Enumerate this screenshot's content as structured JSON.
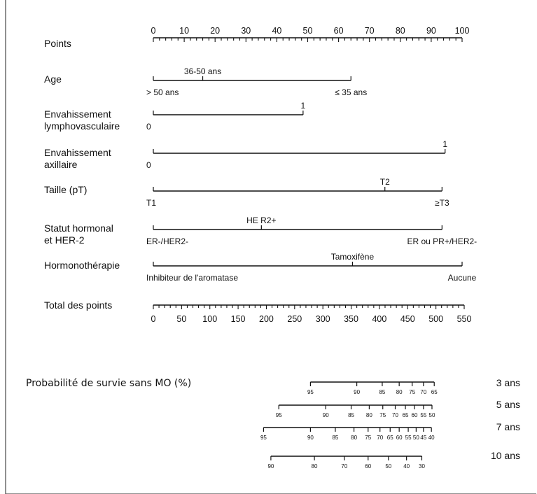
{
  "chart_data": {
    "type": "nomogram",
    "rows": [
      {
        "label_lines": [
          "Points"
        ],
        "scale": {
          "min": 0,
          "max": 100,
          "major_step": 10,
          "minor_step": 2
        },
        "tick_labels": [
          "0",
          "10",
          "20",
          "30",
          "40",
          "50",
          "60",
          "70",
          "80",
          "90",
          "100"
        ]
      },
      {
        "label_lines": [
          "Age"
        ],
        "levels": [
          {
            "text": "> 50 ans",
            "points": 0,
            "position": "below"
          },
          {
            "text": "36-50 ans",
            "points": 16,
            "position": "above"
          },
          {
            "text": "≤ 35 ans",
            "points": 64,
            "position": "below"
          }
        ]
      },
      {
        "label_lines": [
          "Envahissement",
          "lymphovasculaire"
        ],
        "levels": [
          {
            "text": "0",
            "points": 0,
            "position": "below"
          },
          {
            "text": "1",
            "points": 48.5,
            "position": "above"
          }
        ]
      },
      {
        "label_lines": [
          "Envahissement",
          "axillaire"
        ],
        "levels": [
          {
            "text": "0",
            "points": 0,
            "position": "below"
          },
          {
            "text": "1",
            "points": 94.5,
            "position": "above"
          }
        ]
      },
      {
        "label_lines": [
          "Taille (pT)"
        ],
        "levels": [
          {
            "text": "T1",
            "points": 0,
            "position": "below"
          },
          {
            "text": "T2",
            "points": 75,
            "position": "above"
          },
          {
            "text": "≥T3",
            "points": 93.5,
            "position": "below"
          }
        ]
      },
      {
        "label_lines": [
          "Statut hormonal",
          "et HER-2"
        ],
        "levels": [
          {
            "text": "ER-/HER2-",
            "points": 0,
            "position": "below"
          },
          {
            "text": "HE R2+",
            "points": 35,
            "position": "above"
          },
          {
            "text": "ER ou PR+/HER2-",
            "points": 93.5,
            "position": "below"
          }
        ]
      },
      {
        "label_lines": [
          "Hormonothérapie"
        ],
        "levels": [
          {
            "text": "Inhibiteur de l'aromatase",
            "points": 0,
            "position": "below"
          },
          {
            "text": "Tamoxifène",
            "points": 64.5,
            "position": "above"
          },
          {
            "text": "Aucune",
            "points": 100,
            "position": "below"
          }
        ]
      },
      {
        "label_lines": [
          "Total des points"
        ],
        "scale": {
          "min": 0,
          "max": 550,
          "major_step": 50,
          "minor_step": 10
        },
        "tick_labels": [
          "0",
          "50",
          "100",
          "150",
          "200",
          "250",
          "300",
          "350",
          "400",
          "450",
          "500",
          "550"
        ]
      }
    ],
    "survival": {
      "title": "Probabilité de survie sans MO (%)",
      "scales": [
        {
          "name": "3 ans",
          "ticks": [
            {
              "label": "95",
              "total": 278
            },
            {
              "label": "90",
              "total": 360
            },
            {
              "label": "85",
              "total": 405
            },
            {
              "label": "80",
              "total": 435
            },
            {
              "label": "75",
              "total": 458
            },
            {
              "label": "70",
              "total": 478
            },
            {
              "label": "65",
              "total": 497
            }
          ]
        },
        {
          "name": "5 ans",
          "ticks": [
            {
              "label": "95",
              "total": 222
            },
            {
              "label": "90",
              "total": 305
            },
            {
              "label": "85",
              "total": 350
            },
            {
              "label": "80",
              "total": 382
            },
            {
              "label": "75",
              "total": 406
            },
            {
              "label": "70",
              "total": 428
            },
            {
              "label": "65",
              "total": 446
            },
            {
              "label": "60",
              "total": 462
            },
            {
              "label": "55",
              "total": 478
            },
            {
              "label": "50",
              "total": 493
            }
          ]
        },
        {
          "name": "7 ans",
          "ticks": [
            {
              "label": "95",
              "total": 195
            },
            {
              "label": "90",
              "total": 278
            },
            {
              "label": "85",
              "total": 322
            },
            {
              "label": "80",
              "total": 355
            },
            {
              "label": "75",
              "total": 380
            },
            {
              "label": "70",
              "total": 401
            },
            {
              "label": "65",
              "total": 419
            },
            {
              "label": "60",
              "total": 435
            },
            {
              "label": "55",
              "total": 451
            },
            {
              "label": "50",
              "total": 465
            },
            {
              "label": "45",
              "total": 478
            },
            {
              "label": "40",
              "total": 492
            }
          ]
        },
        {
          "name": "10 ans",
          "ticks": [
            {
              "label": "90",
              "total": 208
            },
            {
              "label": "80",
              "total": 285
            },
            {
              "label": "70",
              "total": 338
            },
            {
              "label": "60",
              "total": 380
            },
            {
              "label": "50",
              "total": 416
            },
            {
              "label": "40",
              "total": 448
            },
            {
              "label": "30",
              "total": 475
            }
          ]
        }
      ]
    }
  }
}
